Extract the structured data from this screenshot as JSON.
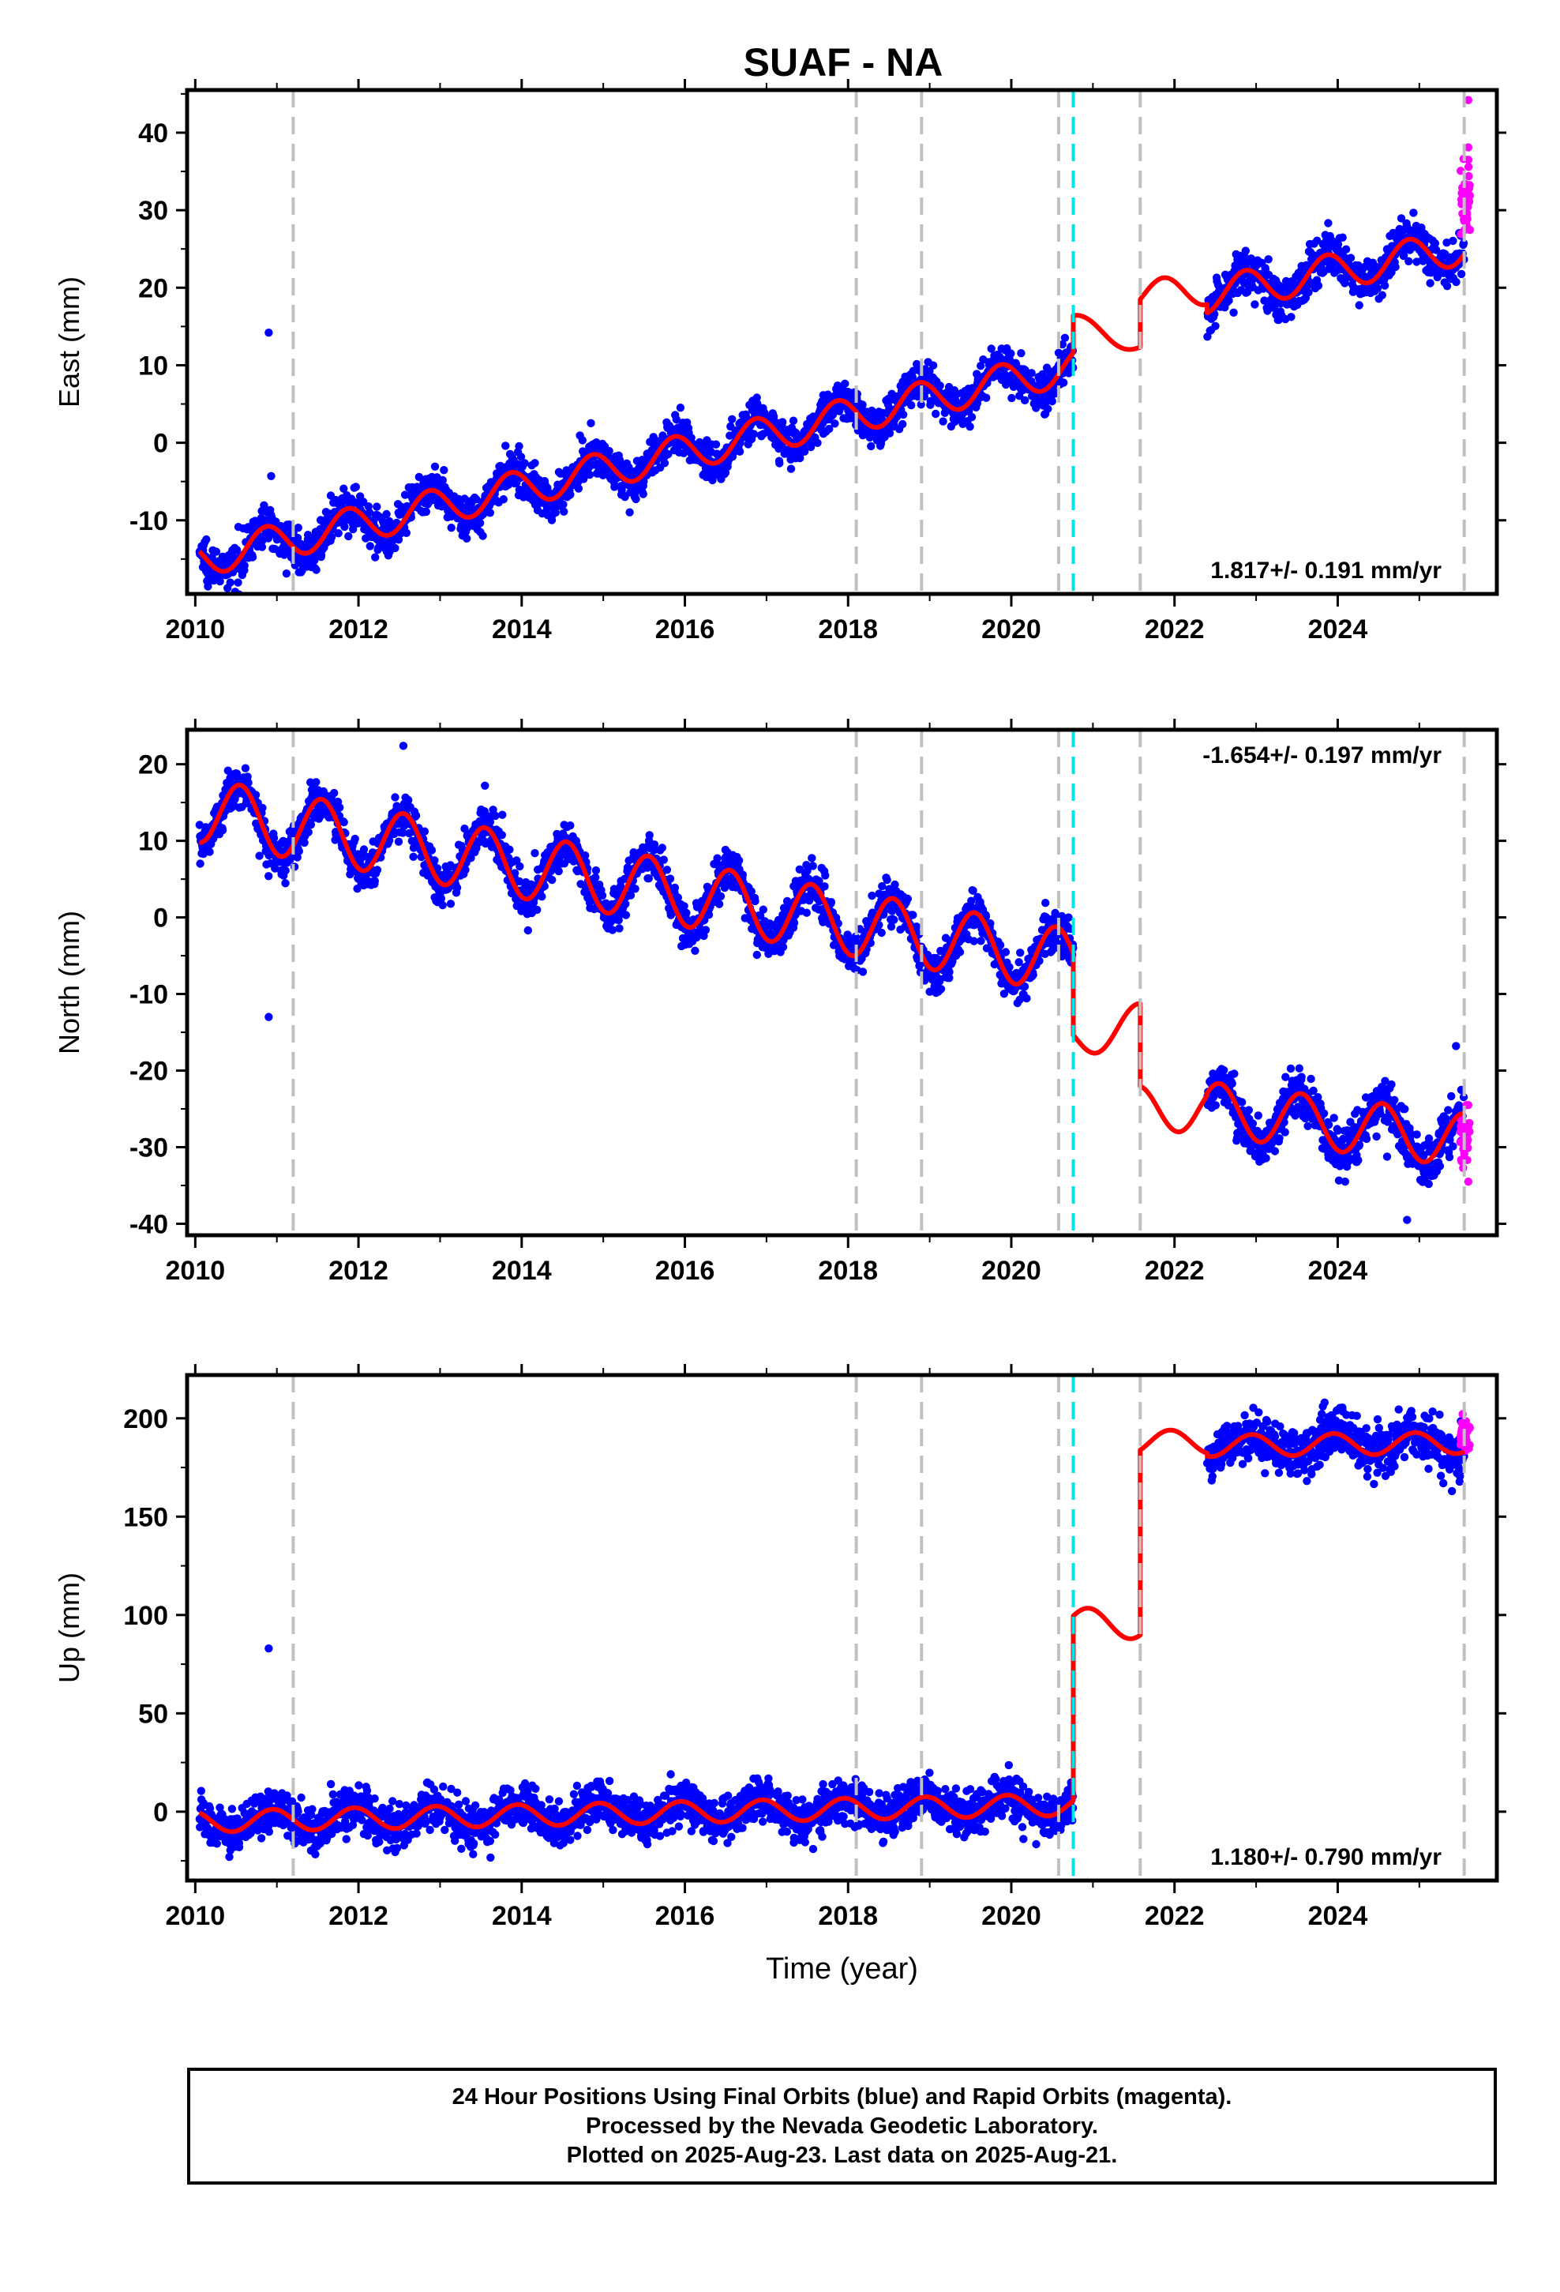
{
  "colors": {
    "final": "#0000ff",
    "rapid": "#ff00ff",
    "model": "#ff0000",
    "break_gray": "#c0c0c0",
    "break_cyan": "#00e5e5",
    "frame": "#000000"
  },
  "chart_data": [
    {
      "type": "scatter",
      "title": "SUAF - NA",
      "ylabel": "East (mm)",
      "xlabel": "",
      "xlim": [
        2009.9,
        2025.95
      ],
      "ylim": [
        -19.5,
        45.5
      ],
      "yticks": [
        -10,
        0,
        10,
        20,
        30,
        40
      ],
      "xticks": [
        2010,
        2012,
        2014,
        2016,
        2018,
        2020,
        2022,
        2024
      ],
      "rate_label": "1.817+/- 0.191 mm/yr",
      "rate_position": "bottom-right",
      "breaks_gray": [
        2011.2,
        2018.1,
        2018.9,
        2020.58,
        2021.58,
        2025.55
      ],
      "breaks_cyan": [
        2020.76
      ],
      "segments": [
        {
          "start": 2010.05,
          "end": 2020.76,
          "offset": -15.0,
          "rate": 2.32,
          "amp": 2.3,
          "data": true,
          "noise": 1.3
        },
        {
          "start": 2020.76,
          "end": 2021.58,
          "offset": 15.5,
          "rate": -3.5,
          "amp": 1.2,
          "data": false,
          "noise": 0
        },
        {
          "start": 2021.58,
          "end": 2022.4,
          "offset": 19.0,
          "rate": 1.0,
          "amp": 2.0,
          "data": false,
          "noise": 0
        },
        {
          "start": 2022.4,
          "end": 2025.55,
          "offset": 19.0,
          "rate": 2.0,
          "amp": 2.3,
          "data": true,
          "noise": 1.4
        }
      ],
      "phase": 2010.62,
      "rapid": {
        "start": 2025.5,
        "end": 2025.62,
        "center": 31.0,
        "spread": 2.5,
        "outliers": [
          44.2,
          38.1,
          36.5
        ]
      },
      "outliers": [
        {
          "x": 2010.9,
          "y": 14.2
        },
        {
          "x": 2010.93,
          "y": -4.3
        }
      ]
    },
    {
      "type": "scatter",
      "title": "",
      "ylabel": "North (mm)",
      "xlabel": "",
      "xlim": [
        2009.9,
        2025.95
      ],
      "ylim": [
        -41.5,
        24.5
      ],
      "yticks": [
        -40,
        -30,
        -20,
        -10,
        0,
        10,
        20
      ],
      "xticks": [
        2010,
        2012,
        2014,
        2016,
        2018,
        2020,
        2022,
        2024
      ],
      "rate_label": "-1.654+/- 0.197 mm/yr",
      "rate_position": "top-right",
      "breaks_gray": [
        2011.2,
        2018.1,
        2018.9,
        2020.58,
        2021.58,
        2025.55
      ],
      "breaks_cyan": [
        2020.76
      ],
      "segments": [
        {
          "start": 2010.05,
          "end": 2020.76,
          "offset": 14.0,
          "rate": -1.85,
          "amp": 4.2,
          "data": true,
          "noise": 1.4
        },
        {
          "start": 2020.76,
          "end": 2021.58,
          "offset": -16.0,
          "rate": 2.8,
          "amp": 2.5,
          "data": false,
          "noise": 0
        },
        {
          "start": 2021.58,
          "end": 2022.4,
          "offset": -25.0,
          "rate": 0.0,
          "amp": 3.0,
          "data": false,
          "noise": 0
        },
        {
          "start": 2022.4,
          "end": 2025.55,
          "offset": -25.0,
          "rate": -1.3,
          "amp": 3.5,
          "data": true,
          "noise": 1.5
        }
      ],
      "phase": 2010.3,
      "rapid": {
        "start": 2025.5,
        "end": 2025.62,
        "center": -28.0,
        "spread": 2.0,
        "outliers": [
          -34.5,
          -24.5
        ]
      },
      "outliers": [
        {
          "x": 2010.9,
          "y": -13.0
        },
        {
          "x": 2012.55,
          "y": 22.4
        },
        {
          "x": 2013.55,
          "y": 17.2
        },
        {
          "x": 2025.45,
          "y": -16.8
        },
        {
          "x": 2024.85,
          "y": -39.5
        }
      ]
    },
    {
      "type": "scatter",
      "title": "",
      "ylabel": "Up (mm)",
      "xlabel": "Time (year)",
      "xlim": [
        2009.9,
        2025.95
      ],
      "ylim": [
        -35,
        222
      ],
      "yticks": [
        0,
        50,
        100,
        150,
        200
      ],
      "xticks": [
        2010,
        2012,
        2014,
        2016,
        2018,
        2020,
        2022,
        2024
      ],
      "rate_label": "1.180+/- 0.790 mm/yr",
      "rate_position": "bottom-right",
      "breaks_gray": [
        2011.2,
        2018.1,
        2018.9,
        2020.58,
        2021.58,
        2025.55
      ],
      "breaks_cyan": [
        2020.76
      ],
      "segments": [
        {
          "start": 2010.05,
          "end": 2020.76,
          "offset": -5.0,
          "rate": 0.8,
          "amp": 5.5,
          "data": true,
          "noise": 5.5
        },
        {
          "start": 2020.76,
          "end": 2021.58,
          "offset": 97.0,
          "rate": -3.0,
          "amp": 7.0,
          "data": false,
          "noise": 0
        },
        {
          "start": 2021.58,
          "end": 2022.4,
          "offset": 188.0,
          "rate": 0.0,
          "amp": 6.0,
          "data": false,
          "noise": 0
        },
        {
          "start": 2022.4,
          "end": 2025.55,
          "offset": 186.0,
          "rate": 0.5,
          "amp": 5.5,
          "data": true,
          "noise": 6.0
        }
      ],
      "phase": 2010.7,
      "rapid": {
        "start": 2025.5,
        "end": 2025.62,
        "center": 191.0,
        "spread": 4.5,
        "outliers": []
      },
      "outliers": [
        {
          "x": 2010.9,
          "y": 83.0
        },
        {
          "x": 2025.4,
          "y": 163.0
        }
      ]
    }
  ],
  "footer": {
    "line1": "24 Hour Positions Using Final Orbits (blue) and Rapid Orbits (magenta).",
    "line2": "Processed by the Nevada Geodetic Laboratory.",
    "line3": "Plotted on 2025-Aug-23. Last data on 2025-Aug-21."
  }
}
